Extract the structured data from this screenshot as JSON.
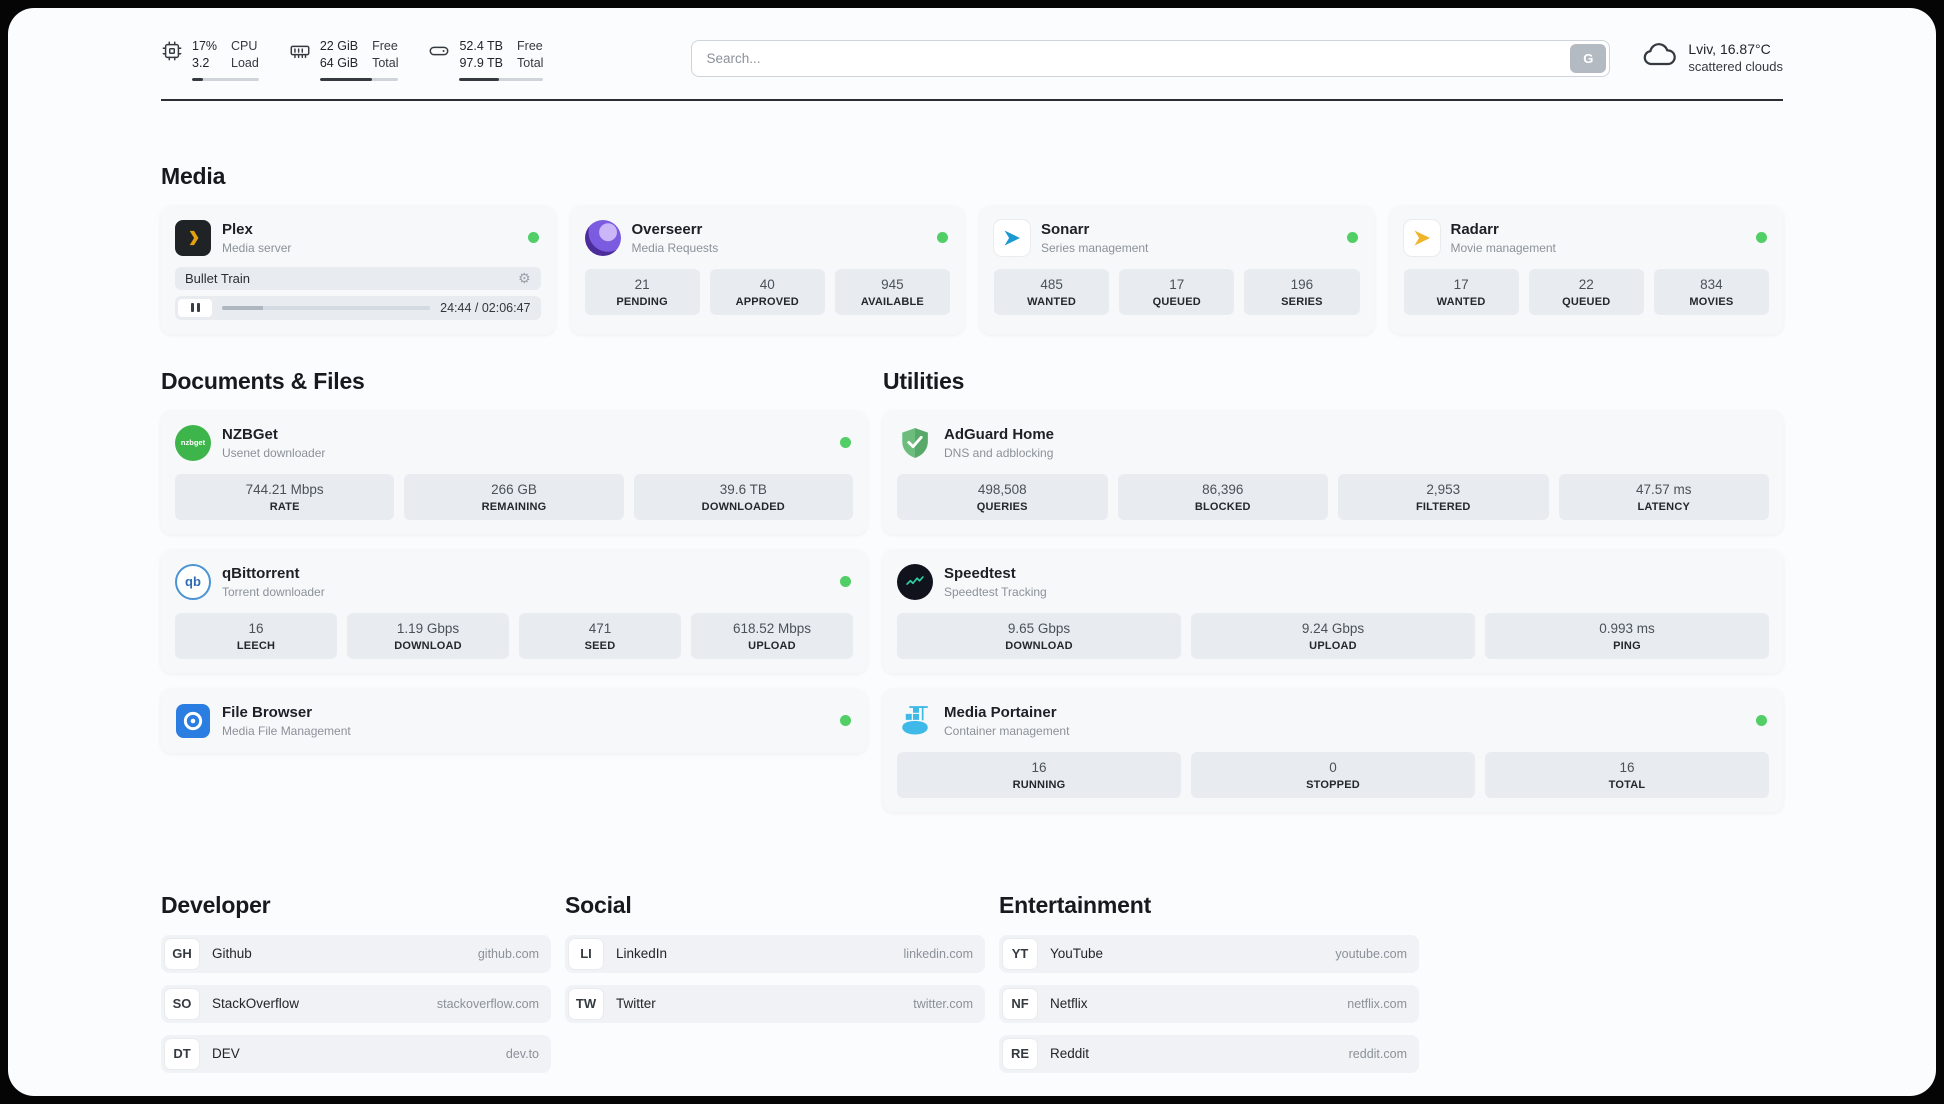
{
  "topbar": {
    "cpu": {
      "value": "17%",
      "sub": "3.2",
      "label_top": "CPU",
      "label_bottom": "Load",
      "percent": 17
    },
    "ram": {
      "value": "22 GiB",
      "sub": "64 GiB",
      "label_top": "Free",
      "label_bottom": "Total",
      "percent": 66
    },
    "disk": {
      "value": "52.4 TB",
      "sub": "97.9 TB",
      "label_top": "Free",
      "label_bottom": "Total",
      "percent": 47
    },
    "search": {
      "placeholder": "Search...",
      "button_label": "G"
    },
    "weather": {
      "location": "Lviv, 16.87°C",
      "condition": "scattered clouds"
    }
  },
  "sections": {
    "media": {
      "title": "Media",
      "apps": [
        {
          "name": "Plex",
          "desc": "Media server",
          "online": true,
          "now_playing": {
            "title": "Bullet Train",
            "time": "24:44 / 02:06:47",
            "progress_percent": 19.5
          }
        },
        {
          "name": "Overseerr",
          "desc": "Media Requests",
          "online": true,
          "stats": [
            {
              "value": "21",
              "label": "PENDING"
            },
            {
              "value": "40",
              "label": "APPROVED"
            },
            {
              "value": "945",
              "label": "AVAILABLE"
            }
          ]
        },
        {
          "name": "Sonarr",
          "desc": "Series management",
          "online": true,
          "stats": [
            {
              "value": "485",
              "label": "WANTED"
            },
            {
              "value": "17",
              "label": "QUEUED"
            },
            {
              "value": "196",
              "label": "SERIES"
            }
          ]
        },
        {
          "name": "Radarr",
          "desc": "Movie management",
          "online": true,
          "stats": [
            {
              "value": "17",
              "label": "WANTED"
            },
            {
              "value": "22",
              "label": "QUEUED"
            },
            {
              "value": "834",
              "label": "MOVIES"
            }
          ]
        }
      ]
    },
    "documents": {
      "title": "Documents & Files",
      "apps": [
        {
          "name": "NZBGet",
          "desc": "Usenet downloader",
          "online": true,
          "stats": [
            {
              "value": "744.21 Mbps",
              "label": "RATE"
            },
            {
              "value": "266 GB",
              "label": "REMAINING"
            },
            {
              "value": "39.6 TB",
              "label": "DOWNLOADED"
            }
          ]
        },
        {
          "name": "qBittorrent",
          "desc": "Torrent downloader",
          "online": true,
          "stats": [
            {
              "value": "16",
              "label": "LEECH"
            },
            {
              "value": "1.19 Gbps",
              "label": "DOWNLOAD"
            },
            {
              "value": "471",
              "label": "SEED"
            },
            {
              "value": "618.52 Mbps",
              "label": "UPLOAD"
            }
          ]
        },
        {
          "name": "File Browser",
          "desc": "Media File Management",
          "online": true,
          "stats": []
        }
      ]
    },
    "utilities": {
      "title": "Utilities",
      "apps": [
        {
          "name": "AdGuard Home",
          "desc": "DNS and adblocking",
          "online": false,
          "stats": [
            {
              "value": "498,508",
              "label": "QUERIES"
            },
            {
              "value": "86,396",
              "label": "BLOCKED"
            },
            {
              "value": "2,953",
              "label": "FILTERED"
            },
            {
              "value": "47.57 ms",
              "label": "LATENCY"
            }
          ]
        },
        {
          "name": "Speedtest",
          "desc": "Speedtest Tracking",
          "online": false,
          "stats": [
            {
              "value": "9.65 Gbps",
              "label": "DOWNLOAD"
            },
            {
              "value": "9.24 Gbps",
              "label": "UPLOAD"
            },
            {
              "value": "0.993 ms",
              "label": "PING"
            }
          ]
        },
        {
          "name": "Media Portainer",
          "desc": "Container management",
          "online": true,
          "stats": [
            {
              "value": "16",
              "label": "RUNNING"
            },
            {
              "value": "0",
              "label": "STOPPED"
            },
            {
              "value": "16",
              "label": "TOTAL"
            }
          ]
        }
      ]
    },
    "links": [
      {
        "title": "Developer",
        "items": [
          {
            "abbr": "GH",
            "name": "Github",
            "url": "github.com"
          },
          {
            "abbr": "SO",
            "name": "StackOverflow",
            "url": "stackoverflow.com"
          },
          {
            "abbr": "DT",
            "name": "DEV",
            "url": "dev.to"
          }
        ]
      },
      {
        "title": "Social",
        "items": [
          {
            "abbr": "LI",
            "name": "LinkedIn",
            "url": "linkedin.com"
          },
          {
            "abbr": "TW",
            "name": "Twitter",
            "url": "twitter.com"
          }
        ]
      },
      {
        "title": "Entertainment",
        "items": [
          {
            "abbr": "YT",
            "name": "YouTube",
            "url": "youtube.com"
          },
          {
            "abbr": "NF",
            "name": "Netflix",
            "url": "netflix.com"
          },
          {
            "abbr": "RE",
            "name": "Reddit",
            "url": "reddit.com"
          }
        ]
      }
    ]
  },
  "icons": {
    "nzbget_text": "nzbget",
    "qbittorrent_text": "qb"
  },
  "colors": {
    "status_online": "#51cf66",
    "plex_brand": "#e5a00d",
    "overseerr_brand": "#6d28d9",
    "sonarr_brand": "#1b9ad1",
    "radarr_brand": "#f0b429",
    "nzbget_brand": "#3db54a",
    "qbittorrent_brand": "#2d6cb5",
    "filebrowser_brand": "#2a7de1",
    "adguard_brand": "#67b579",
    "speedtest_accent": "#2dd4a7",
    "portainer_brand": "#39b9e5",
    "topbar_fill": "#343a40"
  }
}
